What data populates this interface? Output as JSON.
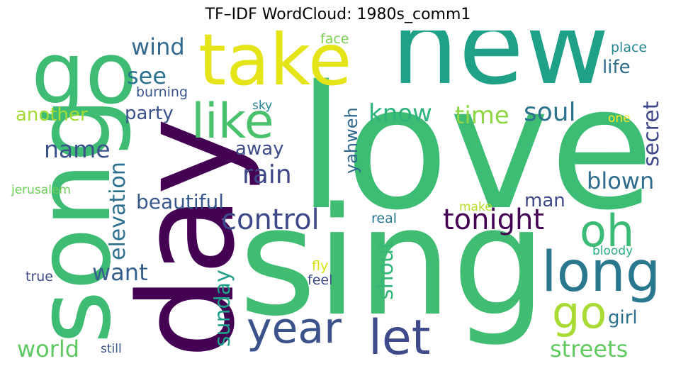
{
  "title": "TF–IDF WordCloud: 1980s_comm1",
  "words": {
    "love": {
      "text": "love",
      "color": "#3dbc74"
    },
    "sing": {
      "text": "sing",
      "color": "#40bd72"
    },
    "new": {
      "text": "new",
      "color": "#1fa187"
    },
    "song": {
      "text": "song",
      "color": "#3fbc73"
    },
    "day": {
      "text": "day",
      "color": "#440154"
    },
    "take": {
      "text": "take",
      "color": "#e5e419"
    },
    "go_big": {
      "text": "go",
      "color": "#3ebc74"
    },
    "like": {
      "text": "like",
      "color": "#4ac16d"
    },
    "long": {
      "text": "long",
      "color": "#2a788e"
    },
    "oh": {
      "text": "oh",
      "color": "#3bbb75"
    },
    "go": {
      "text": "go",
      "color": "#a8db34"
    },
    "year": {
      "text": "year",
      "color": "#3b528b"
    },
    "let": {
      "text": "let",
      "color": "#3e4a89"
    },
    "control": {
      "text": "control",
      "color": "#3e4989"
    },
    "tonight": {
      "text": "tonight",
      "color": "#440154"
    },
    "rain": {
      "text": "rain",
      "color": "#3f4788"
    },
    "name": {
      "text": "name",
      "color": "#3b528b"
    },
    "know": {
      "text": "know",
      "color": "#2eb37c"
    },
    "time": {
      "text": "time",
      "color": "#8ed645"
    },
    "soul": {
      "text": "soul",
      "color": "#2c738e"
    },
    "secret": {
      "text": "secret",
      "color": "#3f4788"
    },
    "blown": {
      "text": "blown",
      "color": "#2f6c8e"
    },
    "want": {
      "text": "want",
      "color": "#355f8d"
    },
    "world": {
      "text": "world",
      "color": "#5ec962"
    },
    "streets": {
      "text": "streets",
      "color": "#60ca60"
    },
    "wind": {
      "text": "wind",
      "color": "#31688e"
    },
    "see": {
      "text": "see",
      "color": "#2c728e"
    },
    "life": {
      "text": "life",
      "color": "#2f6c8e"
    },
    "elevation": {
      "text": "elevation",
      "color": "#2d708e"
    },
    "beautiful": {
      "text": "beautiful",
      "color": "#38588c"
    },
    "sunday": {
      "text": "sunday",
      "color": "#1f9e89"
    },
    "shout": {
      "text": "shout",
      "color": "#35b779"
    },
    "yahweh": {
      "text": "yahweh",
      "color": "#31688e"
    },
    "another": {
      "text": "another",
      "color": "#a5db36"
    },
    "party": {
      "text": "party",
      "color": "#3b528b"
    },
    "away": {
      "text": "away",
      "color": "#3e4a89"
    },
    "man": {
      "text": "man",
      "color": "#3e4989"
    },
    "girl": {
      "text": "girl",
      "color": "#2c728e"
    },
    "burning": {
      "text": "burning",
      "color": "#3a548c"
    },
    "place": {
      "text": "place",
      "color": "#25858e"
    },
    "face": {
      "text": "face",
      "color": "#7ad151"
    },
    "sky": {
      "text": "sky",
      "color": "#26828e"
    },
    "one": {
      "text": "one",
      "color": "#fde725"
    },
    "jerusalem": {
      "text": "jerusalem",
      "color": "#6ccd5a"
    },
    "make": {
      "text": "make",
      "color": "#b5de2b"
    },
    "real": {
      "text": "real",
      "color": "#2a768e"
    },
    "bloody": {
      "text": "bloody",
      "color": "#29af7f"
    },
    "true": {
      "text": "true",
      "color": "#3e4a89"
    },
    "fly": {
      "text": "fly",
      "color": "#d8e219"
    },
    "feel": {
      "text": "feel",
      "color": "#3e4a89"
    },
    "still": {
      "text": "still",
      "color": "#3b528b"
    }
  }
}
